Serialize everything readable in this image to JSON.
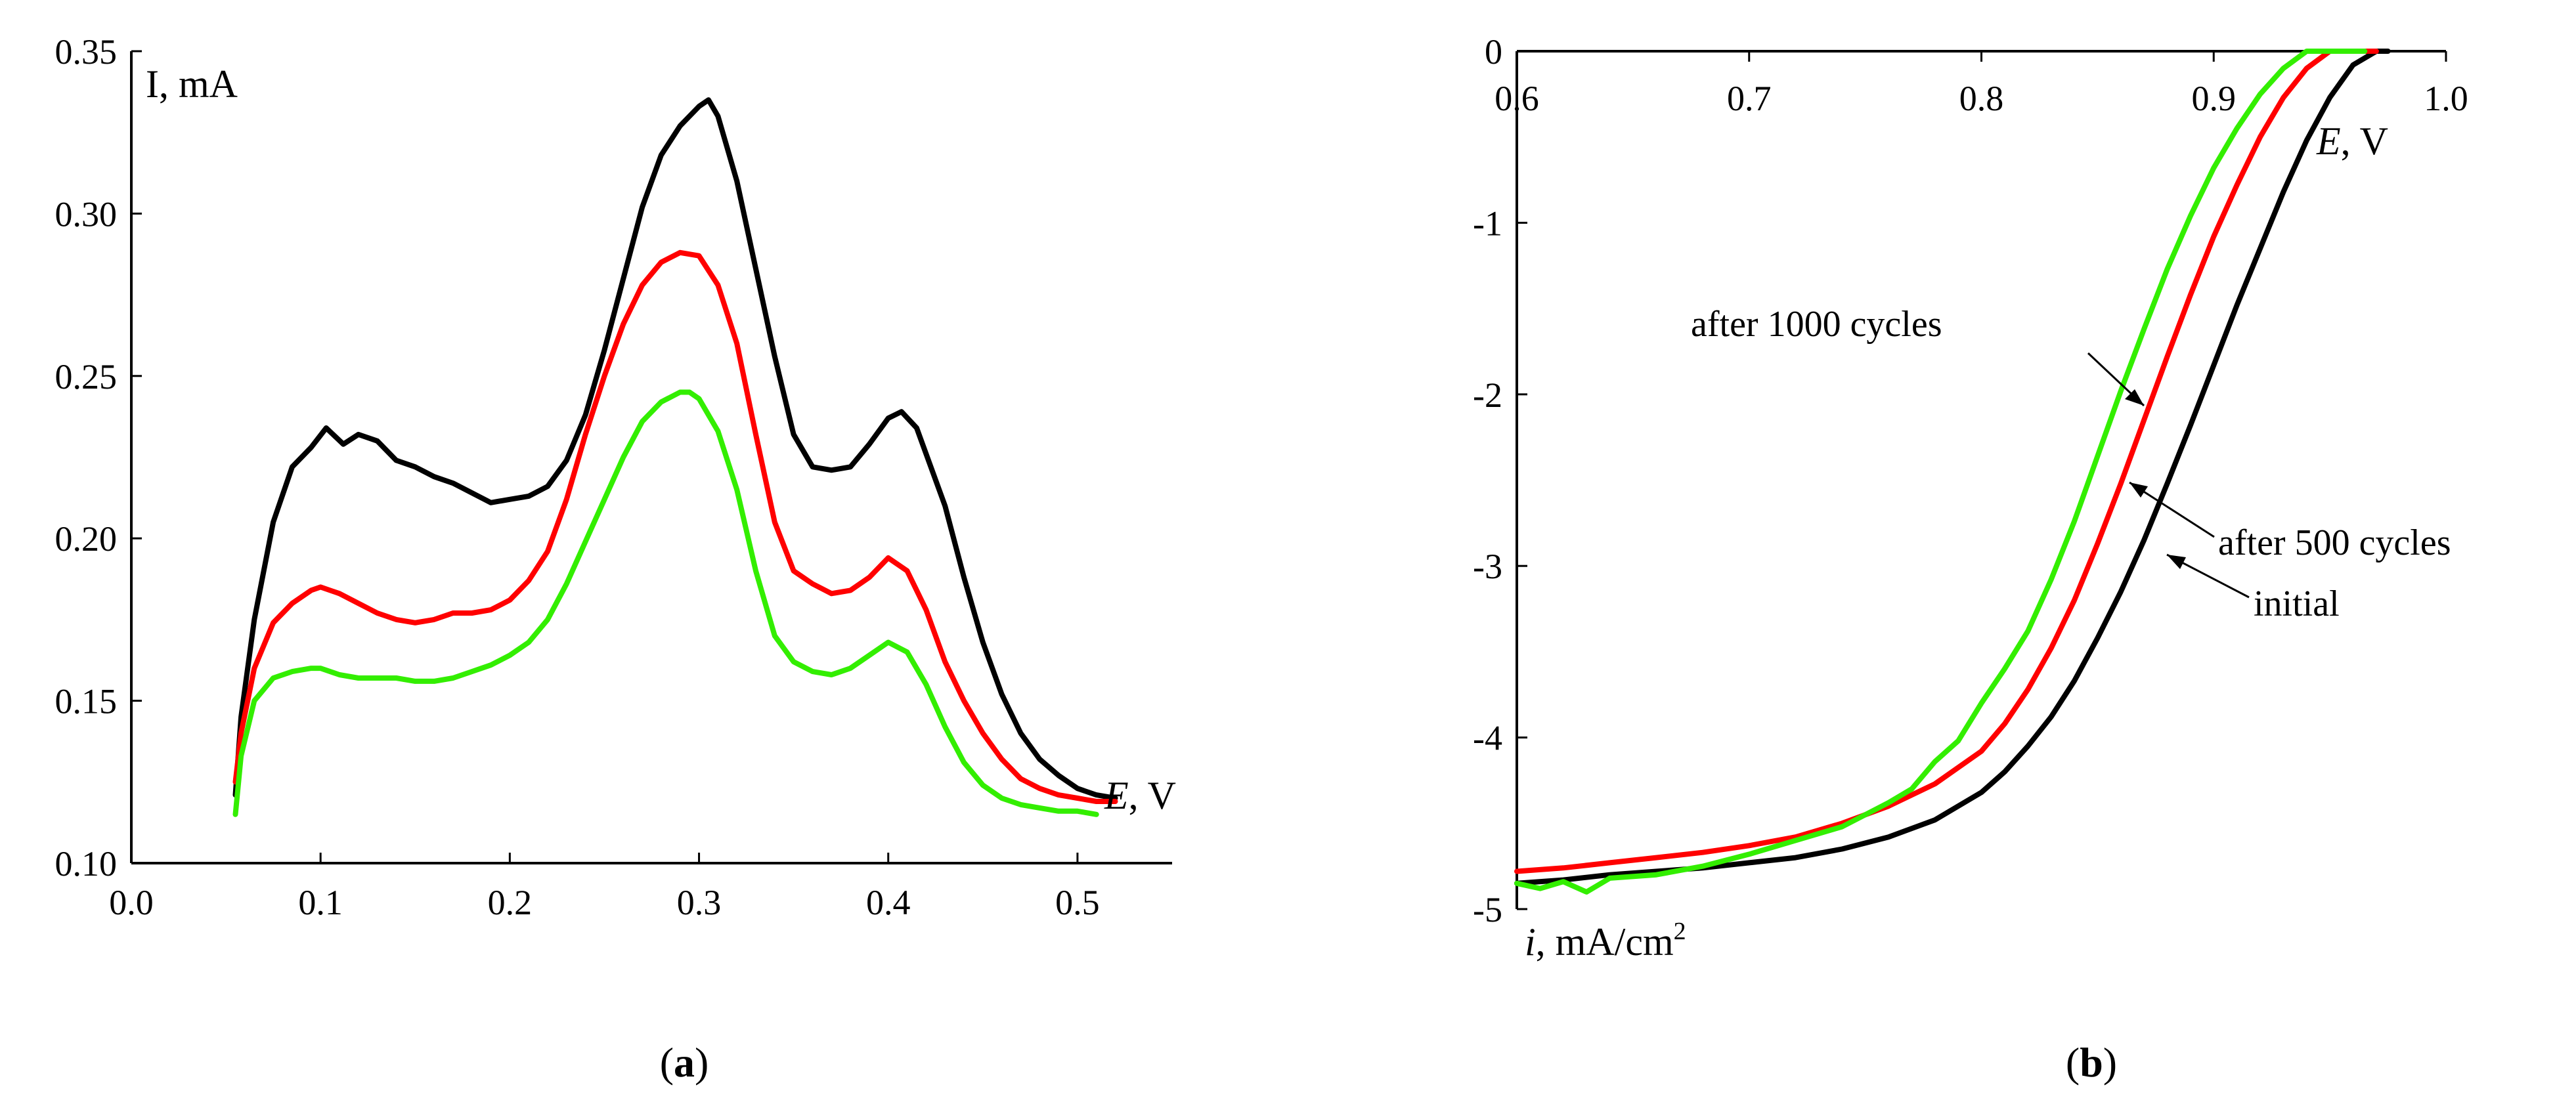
{
  "chart_data": [
    {
      "type": "line",
      "panel": "(a)",
      "panel_label_open": "(",
      "panel_label_letter": "a",
      "panel_label_close": ")",
      "ylabel": "I, mA",
      "xlabel_italic": "E",
      "xlabel_rest": ", V",
      "xlim": [
        0.0,
        0.55
      ],
      "ylim": [
        0.1,
        0.35
      ],
      "xticks": [
        "0.0",
        "0.1",
        "0.2",
        "0.3",
        "0.4",
        "0.5"
      ],
      "yticks": [
        "0.10",
        "0.15",
        "0.20",
        "0.25",
        "0.30",
        "0.35"
      ],
      "series": [
        {
          "name": "black",
          "color": "#000000",
          "x": [
            0.055,
            0.058,
            0.065,
            0.075,
            0.085,
            0.095,
            0.103,
            0.112,
            0.12,
            0.13,
            0.14,
            0.15,
            0.16,
            0.17,
            0.18,
            0.19,
            0.2,
            0.21,
            0.22,
            0.23,
            0.24,
            0.25,
            0.26,
            0.27,
            0.28,
            0.29,
            0.3,
            0.305,
            0.31,
            0.32,
            0.33,
            0.34,
            0.35,
            0.36,
            0.37,
            0.38,
            0.39,
            0.4,
            0.407,
            0.415,
            0.43,
            0.44,
            0.45,
            0.46,
            0.47,
            0.48,
            0.49,
            0.5,
            0.51,
            0.52
          ],
          "y": [
            0.121,
            0.145,
            0.175,
            0.205,
            0.222,
            0.228,
            0.234,
            0.229,
            0.232,
            0.23,
            0.224,
            0.222,
            0.219,
            0.217,
            0.214,
            0.211,
            0.212,
            0.213,
            0.216,
            0.224,
            0.238,
            0.258,
            0.28,
            0.302,
            0.318,
            0.327,
            0.333,
            0.335,
            0.33,
            0.31,
            0.283,
            0.256,
            0.232,
            0.222,
            0.221,
            0.222,
            0.229,
            0.237,
            0.239,
            0.234,
            0.21,
            0.188,
            0.168,
            0.152,
            0.14,
            0.132,
            0.127,
            0.123,
            0.121,
            0.12
          ]
        },
        {
          "name": "red",
          "color": "#ff0000",
          "x": [
            0.055,
            0.058,
            0.065,
            0.075,
            0.085,
            0.095,
            0.1,
            0.11,
            0.12,
            0.13,
            0.14,
            0.15,
            0.16,
            0.17,
            0.18,
            0.19,
            0.2,
            0.21,
            0.22,
            0.23,
            0.24,
            0.25,
            0.26,
            0.27,
            0.28,
            0.29,
            0.3,
            0.31,
            0.32,
            0.33,
            0.34,
            0.35,
            0.36,
            0.37,
            0.38,
            0.39,
            0.4,
            0.41,
            0.42,
            0.43,
            0.44,
            0.45,
            0.46,
            0.47,
            0.48,
            0.49,
            0.5,
            0.51,
            0.52
          ],
          "y": [
            0.125,
            0.14,
            0.16,
            0.174,
            0.18,
            0.184,
            0.185,
            0.183,
            0.18,
            0.177,
            0.175,
            0.174,
            0.175,
            0.177,
            0.177,
            0.178,
            0.181,
            0.187,
            0.196,
            0.212,
            0.232,
            0.25,
            0.266,
            0.278,
            0.285,
            0.288,
            0.287,
            0.278,
            0.26,
            0.232,
            0.205,
            0.19,
            0.186,
            0.183,
            0.184,
            0.188,
            0.194,
            0.19,
            0.178,
            0.162,
            0.15,
            0.14,
            0.132,
            0.126,
            0.123,
            0.121,
            0.12,
            0.119,
            0.119
          ]
        },
        {
          "name": "green",
          "color": "#33ee00",
          "x": [
            0.055,
            0.058,
            0.065,
            0.075,
            0.085,
            0.095,
            0.1,
            0.11,
            0.12,
            0.13,
            0.14,
            0.15,
            0.16,
            0.17,
            0.18,
            0.19,
            0.2,
            0.21,
            0.22,
            0.23,
            0.24,
            0.25,
            0.26,
            0.27,
            0.28,
            0.29,
            0.295,
            0.3,
            0.31,
            0.32,
            0.33,
            0.34,
            0.35,
            0.36,
            0.37,
            0.38,
            0.39,
            0.4,
            0.41,
            0.42,
            0.43,
            0.44,
            0.45,
            0.46,
            0.47,
            0.48,
            0.49,
            0.5,
            0.51
          ],
          "y": [
            0.115,
            0.133,
            0.15,
            0.157,
            0.159,
            0.16,
            0.16,
            0.158,
            0.157,
            0.157,
            0.157,
            0.156,
            0.156,
            0.157,
            0.159,
            0.161,
            0.164,
            0.168,
            0.175,
            0.186,
            0.199,
            0.212,
            0.225,
            0.236,
            0.242,
            0.245,
            0.245,
            0.243,
            0.233,
            0.215,
            0.19,
            0.17,
            0.162,
            0.159,
            0.158,
            0.16,
            0.164,
            0.168,
            0.165,
            0.155,
            0.142,
            0.131,
            0.124,
            0.12,
            0.118,
            0.117,
            0.116,
            0.116,
            0.115
          ]
        }
      ]
    },
    {
      "type": "line",
      "panel": "(b)",
      "panel_label_open": "(",
      "panel_label_letter": "b",
      "panel_label_close": ")",
      "ylabel_italic": "i",
      "ylabel_rest": ", mA/cm",
      "ylabel_sup": "2",
      "xlabel_italic": "E",
      "xlabel_rest": ", V",
      "xlim": [
        0.6,
        1.0
      ],
      "ylim": [
        -5,
        0
      ],
      "xaxis_position": "top",
      "xticks": [
        "0.6",
        "0.7",
        "0.8",
        "0.9",
        "1.0"
      ],
      "yticks": [
        "0",
        "-1",
        "-2",
        "-3",
        "-4",
        "-5"
      ],
      "annotations": [
        "after 1000 cycles",
        "after 500 cycles",
        "initial"
      ],
      "series": [
        {
          "name": "initial",
          "color": "#000000",
          "x": [
            0.6,
            0.62,
            0.64,
            0.66,
            0.68,
            0.7,
            0.72,
            0.74,
            0.76,
            0.78,
            0.8,
            0.81,
            0.82,
            0.83,
            0.84,
            0.85,
            0.86,
            0.87,
            0.88,
            0.89,
            0.9,
            0.91,
            0.92,
            0.93,
            0.94,
            0.95,
            0.96,
            0.97,
            0.975
          ],
          "y": [
            -4.85,
            -4.83,
            -4.8,
            -4.78,
            -4.76,
            -4.73,
            -4.7,
            -4.65,
            -4.58,
            -4.48,
            -4.32,
            -4.2,
            -4.05,
            -3.88,
            -3.67,
            -3.42,
            -3.15,
            -2.85,
            -2.52,
            -2.18,
            -1.83,
            -1.48,
            -1.15,
            -0.82,
            -0.52,
            -0.27,
            -0.08,
            0.0,
            0.0
          ]
        },
        {
          "name": "after 500 cycles",
          "color": "#ff0000",
          "x": [
            0.6,
            0.62,
            0.64,
            0.66,
            0.68,
            0.7,
            0.72,
            0.74,
            0.76,
            0.78,
            0.8,
            0.81,
            0.82,
            0.83,
            0.84,
            0.85,
            0.86,
            0.87,
            0.88,
            0.89,
            0.9,
            0.91,
            0.92,
            0.93,
            0.94,
            0.95,
            0.96,
            0.97
          ],
          "y": [
            -4.78,
            -4.76,
            -4.73,
            -4.7,
            -4.67,
            -4.63,
            -4.58,
            -4.5,
            -4.4,
            -4.27,
            -4.08,
            -3.92,
            -3.72,
            -3.48,
            -3.2,
            -2.87,
            -2.52,
            -2.15,
            -1.78,
            -1.42,
            -1.08,
            -0.78,
            -0.5,
            -0.27,
            -0.1,
            0.0,
            0.0,
            0.0
          ]
        },
        {
          "name": "after 1000 cycles",
          "color": "#33ee00",
          "x": [
            0.6,
            0.61,
            0.62,
            0.63,
            0.64,
            0.66,
            0.68,
            0.7,
            0.72,
            0.74,
            0.76,
            0.77,
            0.78,
            0.79,
            0.8,
            0.81,
            0.82,
            0.83,
            0.84,
            0.85,
            0.86,
            0.87,
            0.88,
            0.89,
            0.9,
            0.91,
            0.92,
            0.93,
            0.94,
            0.95,
            0.96,
            0.965
          ],
          "y": [
            -4.85,
            -4.88,
            -4.84,
            -4.9,
            -4.82,
            -4.8,
            -4.75,
            -4.68,
            -4.6,
            -4.52,
            -4.38,
            -4.3,
            -4.14,
            -4.02,
            -3.8,
            -3.6,
            -3.38,
            -3.08,
            -2.74,
            -2.36,
            -1.98,
            -1.62,
            -1.27,
            -0.96,
            -0.68,
            -0.45,
            -0.25,
            -0.1,
            0.0,
            0.0,
            0.0,
            0.0
          ]
        }
      ]
    }
  ]
}
